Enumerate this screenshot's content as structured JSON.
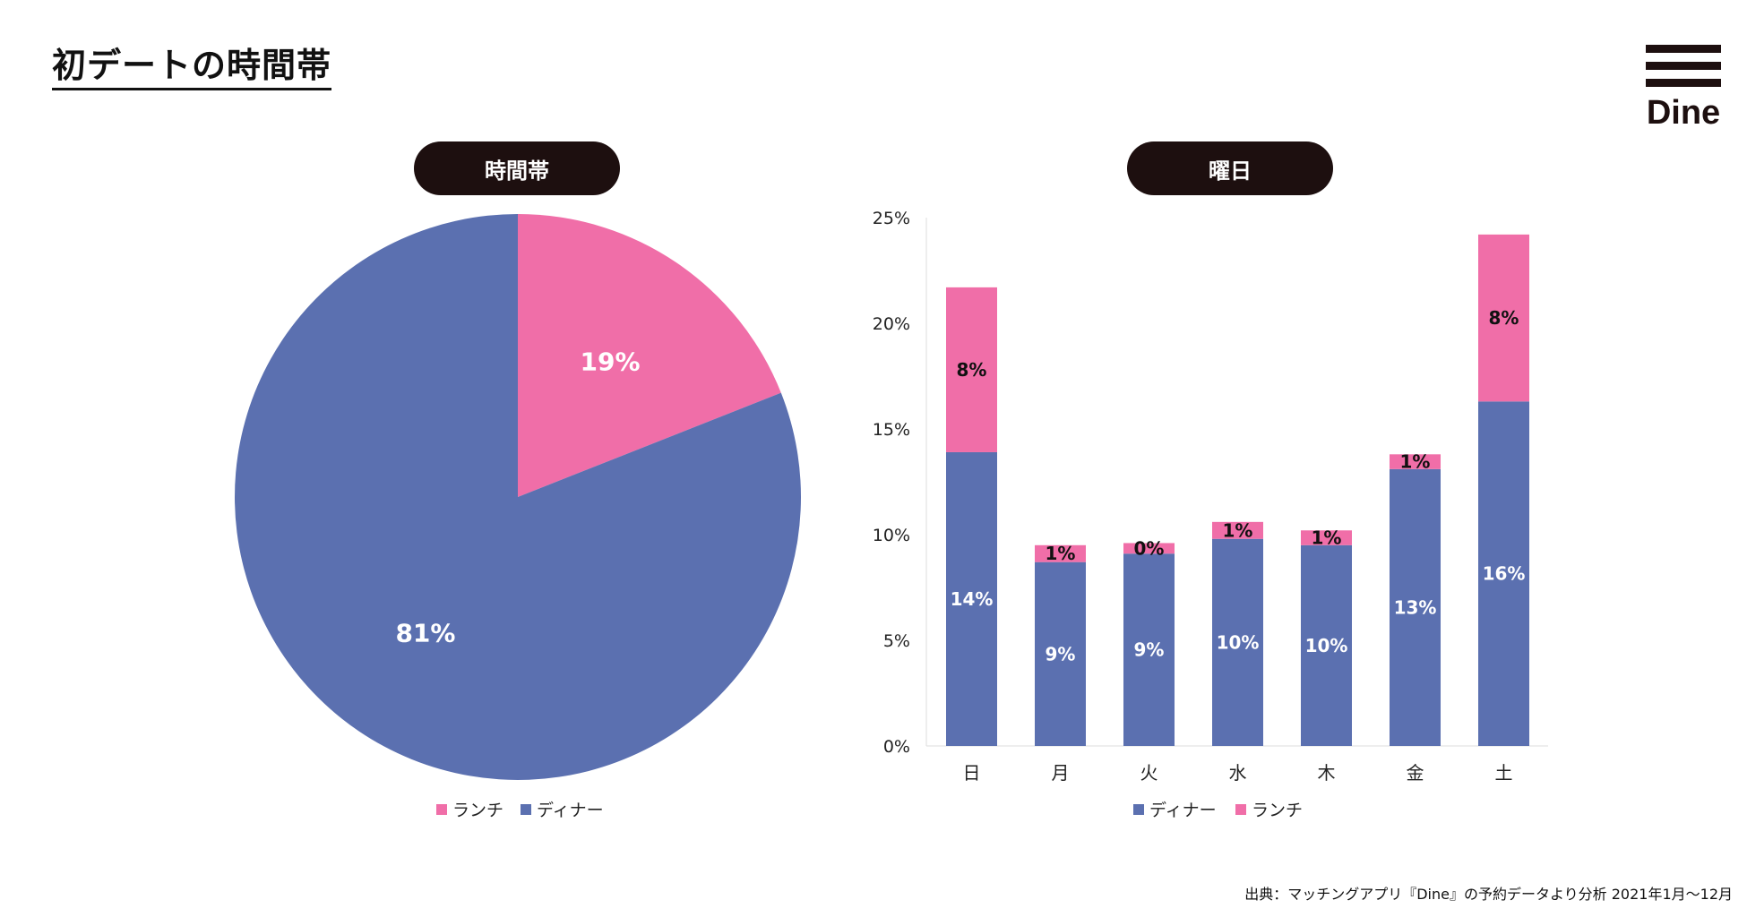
{
  "page": {
    "title": "初デートの時間帯",
    "logo_text": "Dine",
    "source": "出典：マッチングアプリ『Dine』の予約データより分析 2021年1月〜12月"
  },
  "colors": {
    "lunch": "#f06ea8",
    "dinner": "#5b70b0",
    "pill_bg": "#1d0f0f"
  },
  "chart_data": [
    {
      "type": "pie",
      "title": "時間帯",
      "slices": [
        {
          "name": "ランチ",
          "value": 19,
          "label": "19%"
        },
        {
          "name": "ディナー",
          "value": 81,
          "label": "81%"
        }
      ],
      "legend": [
        "ランチ",
        "ディナー"
      ],
      "legend_position": "bottom"
    },
    {
      "type": "bar",
      "stacked": true,
      "title": "曜日",
      "categories": [
        "日",
        "月",
        "火",
        "水",
        "木",
        "金",
        "土"
      ],
      "series": [
        {
          "name": "ディナー",
          "values": [
            13.9,
            8.7,
            9.1,
            9.8,
            9.5,
            13.1,
            16.3
          ],
          "labels": [
            "14%",
            "9%",
            "9%",
            "10%",
            "10%",
            "13%",
            "16%"
          ]
        },
        {
          "name": "ランチ",
          "values": [
            7.8,
            0.8,
            0.5,
            0.8,
            0.7,
            0.7,
            7.9
          ],
          "labels": [
            "8%",
            "1%",
            "0%",
            "1%",
            "1%",
            "1%",
            "8%"
          ]
        }
      ],
      "ylim": [
        0,
        25
      ],
      "yticks": [
        "0%",
        "5%",
        "10%",
        "15%",
        "20%",
        "25%"
      ],
      "legend": [
        "ディナー",
        "ランチ"
      ],
      "legend_position": "bottom"
    }
  ]
}
